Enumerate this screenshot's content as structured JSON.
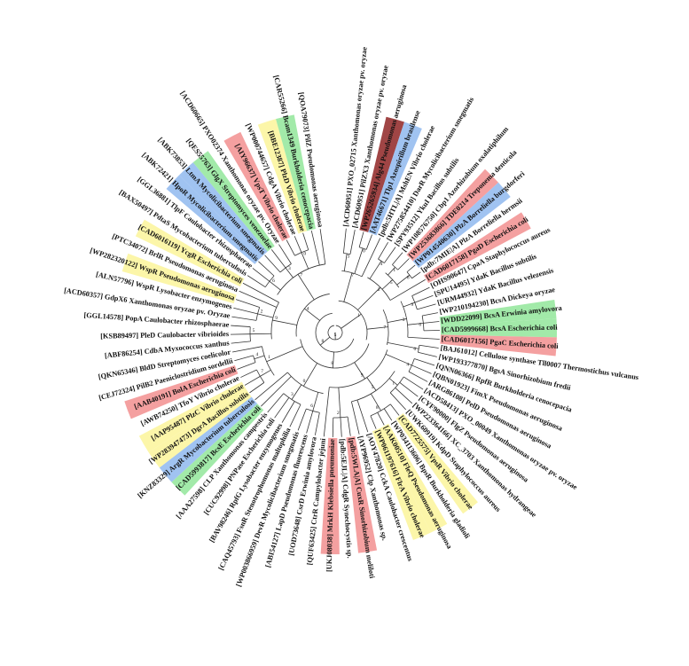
{
  "tree": {
    "colors": {
      "red": "#f28f8f",
      "blue": "#8fb8ee",
      "green": "#92e69a",
      "yellow": "#fbf59a",
      "maroon": "#9b3b3b"
    },
    "leaves": [
      {
        "label": "[ACD60951] PXO_02715 Xanthomonas oryzae pv. oryzae",
        "hl": ""
      },
      {
        "label": "[ACD60951] PilZX3 Xanthomonas oryzae pv. oryzae",
        "hl": ""
      },
      {
        "label": "[WP265265934] Alg44 Pseudomonas aeruginosa",
        "hl": "maroon"
      },
      {
        "label": "[AAT46671] Tlp1 Azospirillum brasilense",
        "hl": "blue"
      },
      {
        "label": "[pdb:5HTL|A] MshEN Vibrio cholerae",
        "hl": ""
      },
      {
        "label": "[WP275854410] DarR Mycolicibacterium smegmatis",
        "hl": ""
      },
      {
        "label": "[SPY93512] YkuI Bacillus subtilis",
        "hl": ""
      },
      {
        "label": "[WP108576750] Cbp1 Azorhizobium oxalatiphilum",
        "hl": ""
      },
      {
        "label": "[WP253683866] TDE0214 Treponema denticola",
        "hl": "red"
      },
      {
        "label": "[WP014540630] PlzA Borreliella burgdorferi",
        "hl": "blue"
      },
      {
        "label": "[pdb:7MIE|A] PlzA Borreliella hermsii",
        "hl": ""
      },
      {
        "label": "[CAD6017158] PgaD Escherichia coli",
        "hl": "red"
      },
      {
        "label": "[OHS90647] CpaA Staphylococcus aureus",
        "hl": ""
      },
      {
        "label": "[SPU14495] YdaK Bacillus subtilis",
        "hl": ""
      },
      {
        "label": "[URM44932] YdaK Bacillus velezensis",
        "hl": ""
      },
      {
        "label": "[WP210194230] BcsA Dickeya oryzae",
        "hl": ""
      },
      {
        "label": "[WDD22099] BcsA Erwinia amylovora",
        "hl": "green"
      },
      {
        "label": "[CAD5999668] BcsA Escherichia coli",
        "hl": "green"
      },
      {
        "label": "[CAD6017156] PgaC Escherichia coli",
        "hl": "red"
      },
      {
        "label": "[BAJ61012] Cellulose synthase Tll0007 Thermostichus vulcanus",
        "hl": ""
      },
      {
        "label": "[WP193377870] BgsA Sinorhizobium fredii",
        "hl": ""
      },
      {
        "label": "[QNN06366] RpfR Burkholderia cenocepacia",
        "hl": ""
      },
      {
        "label": "[QBN01923] FimX Pseudomonas aeruginosa",
        "hl": ""
      },
      {
        "label": "[ARG86108] PelD Pseudomonas aeruginosa",
        "hl": ""
      },
      {
        "label": "[ACD58413] PXO_00049 Xanthomonas oryzae pv. oryzae",
        "hl": ""
      },
      {
        "label": "[CYF90000] FlgZ Pseudomonas aeruginosa",
        "hl": ""
      },
      {
        "label": "[WP223364166] XC_3703 Xanthomonas hydrangeae",
        "hl": ""
      },
      {
        "label": "[UWK60919] KdpD Staphylococcus aureus",
        "hl": ""
      },
      {
        "label": "[CAD7725575] VpsR Vibrio cholerae",
        "hl": "yellow"
      },
      {
        "label": "[WP034113606] BpsR Burkholderia gladioli",
        "hl": ""
      },
      {
        "label": "[AAK00510] FleQ Pseudomonas aeruginosa",
        "hl": "yellow"
      },
      {
        "label": "[WP061197616] FlrA Vibrio cholerae",
        "hl": "yellow"
      },
      {
        "label": "[AOY47820] CckA Caulobacter crescentus",
        "hl": ""
      },
      {
        "label": "[AYP96952] Clp Xanthomonas sp.",
        "hl": ""
      },
      {
        "label": "[pdb:5WLA|A] CuxR Sinorhizobium meliloti",
        "hl": "red"
      },
      {
        "label": "[pdb:5EJL|A] CdgR Synechocystis sp.",
        "hl": ""
      },
      {
        "label": "[UKJ08038] MrkH Klebsiella pneumoniae",
        "hl": "red"
      },
      {
        "label": "[QUF63425] CtrR Campylobacter jejuni",
        "hl": ""
      },
      {
        "label": "[UOD73648] CsrD Erwinia amylovora",
        "hl": ""
      },
      {
        "label": "[ABI54127] LapD Pseudomonas fluorescens",
        "hl": ""
      },
      {
        "label": "[WP003866959] DevR Mycolicibacterium smegmatis",
        "hl": ""
      },
      {
        "label": "[CAQ45793] FsnR Stenotrophomonas maltophilia",
        "hl": ""
      },
      {
        "label": "[BAV98246] RpfG Lysobacter enzymogenes",
        "hl": ""
      },
      {
        "label": "[CUC92998] PNPase Escherichia coli",
        "hl": ""
      },
      {
        "label": "[AAA27598] CLP Xanthomonas campestris",
        "hl": ""
      },
      {
        "label": "[CAD5993817] BcsE Escherichia coli",
        "hl": "green"
      },
      {
        "label": "[KNZ83329] ArgR Mycobacterium tuberculosis",
        "hl": "blue"
      },
      {
        "label": "[WP283947473] DgrA Bacillus subtilis",
        "hl": "yellow"
      },
      {
        "label": "[AAP95487] PlzC Vibrio cholerae",
        "hl": "yellow"
      },
      {
        "label": "[AWB74250] TfoY Vibrio cholerae",
        "hl": ""
      },
      {
        "label": "[AAB40191] BolA Escherichia coli",
        "hl": "red"
      },
      {
        "label": "[CEJ72324] PilB2 Paeniclostridium sordellii",
        "hl": ""
      },
      {
        "label": "[QKN65346] BldD Streptomyces coelicolor",
        "hl": ""
      },
      {
        "label": "[ABF86254] CdbA Myxococcus xanthus",
        "hl": ""
      },
      {
        "label": "[KSB89497] PleD Caulobacter vibrioides",
        "hl": ""
      },
      {
        "label": "[GGL14578] PopA Caulobacter rhizosphaerae",
        "hl": ""
      },
      {
        "label": "[ACD60357] GdpX6 Xanthomonas oryzae pv. Oryzae",
        "hl": ""
      },
      {
        "label": "[ALN57796] WspR Lysobacter enzymogenes",
        "hl": ""
      },
      {
        "label": "[WP282320122] WspR Pseudomonas aeruginosa",
        "hl": "yellow"
      },
      {
        "label": "[PTC34072] BrlR Pseudomonas aeruginosa",
        "hl": ""
      },
      {
        "label": "[CAD6016119] YcgR Escherichia coli",
        "hl": "yellow"
      },
      {
        "label": "[BAX50497] PdtaS Mycobacterium tuberculosis",
        "hl": ""
      },
      {
        "label": "[GGL36881] TlpF Caulobacter rhizosphaerae",
        "hl": ""
      },
      {
        "label": "[ABK72421] HpoR Mycolicibacterium smegmatis",
        "hl": "blue"
      },
      {
        "label": "[ABK73853] LtmA Mycolicibacterium smegmatis",
        "hl": "blue"
      },
      {
        "label": "[QES55763] GlgX Streptomyces venezuelae",
        "hl": "green"
      },
      {
        "label": "[ACD60665] PXO02374 Xanthomonas oryzae pv. Oryzae",
        "hl": ""
      },
      {
        "label": "[AIY96637] VpsT Vibrio cholerae",
        "hl": "red"
      },
      {
        "label": "[WP000744657] CdgA Vibrio cholerae",
        "hl": ""
      },
      {
        "label": "[BBE12387] PlzD Vibrio cholerae",
        "hl": "yellow"
      },
      {
        "label": "[CAR55266] Bcam1349 Burkholderia cenocepacia",
        "hl": "green"
      },
      {
        "label": "[QOA79073] PilZ Pseudomonas aeruginosa",
        "hl": ""
      }
    ]
  }
}
